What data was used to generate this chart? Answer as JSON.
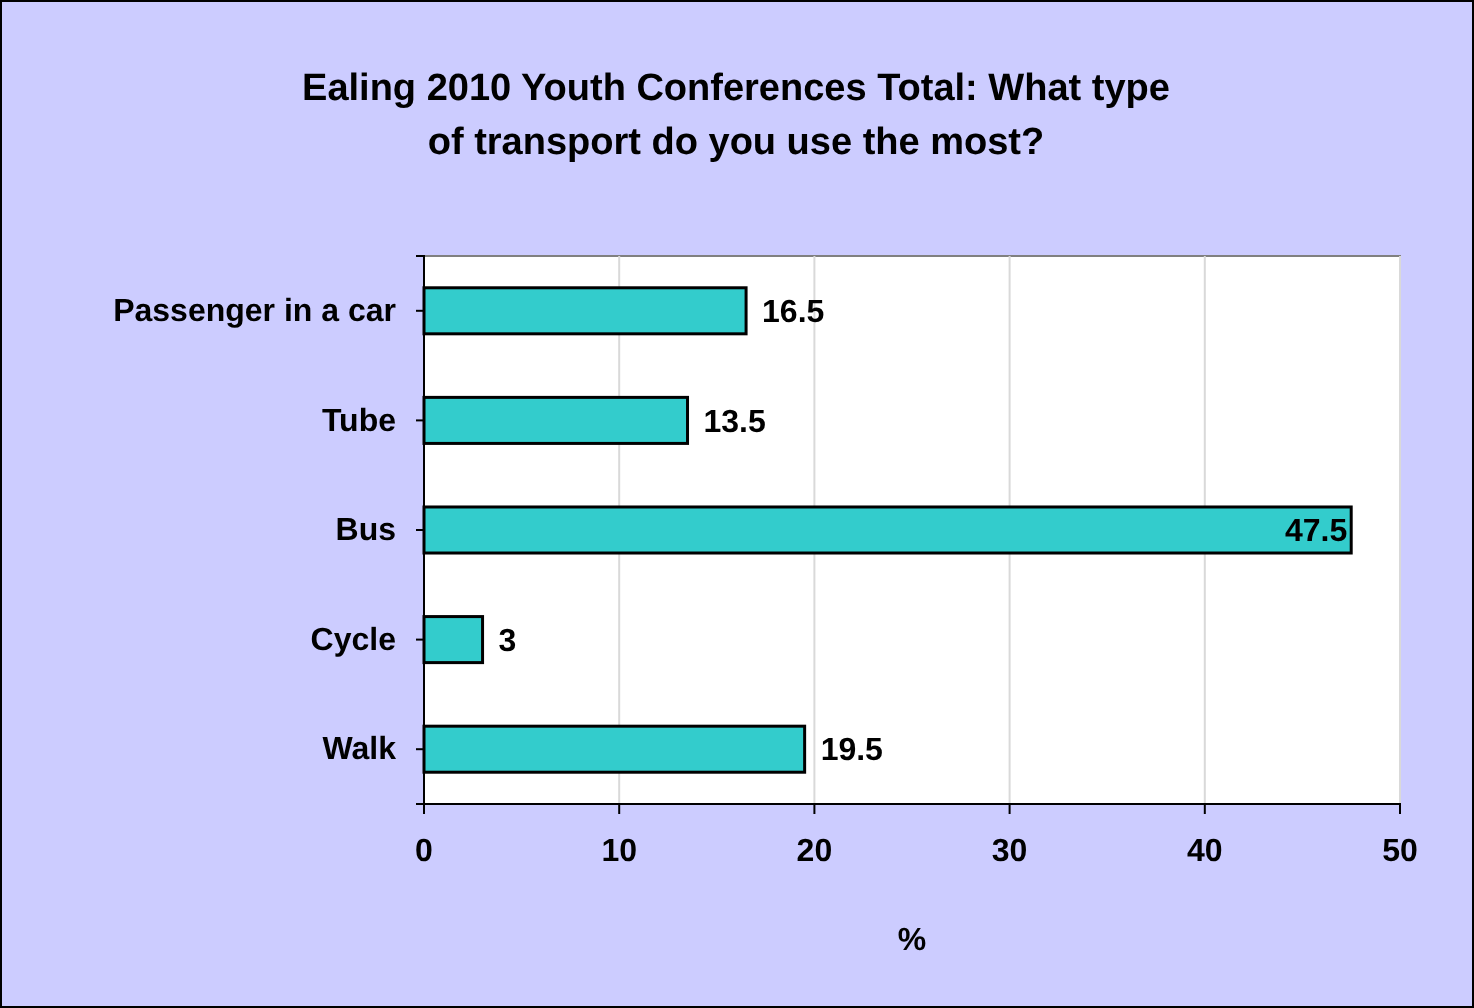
{
  "chart_data": {
    "type": "bar",
    "orientation": "horizontal",
    "title": "Ealing 2010 Youth Conferences Total: What type of transport do you use the most?",
    "xlabel": "%",
    "categories": [
      "Passenger in a car",
      "Tube",
      "Bus",
      "Cycle",
      "Walk"
    ],
    "values": [
      16.5,
      13.5,
      47.5,
      3,
      19.5
    ],
    "color": "#33cccc",
    "xlim": [
      0,
      50
    ],
    "xticks": [
      0,
      10,
      20,
      30,
      40,
      50
    ],
    "grid": "x",
    "data_labels": true
  }
}
